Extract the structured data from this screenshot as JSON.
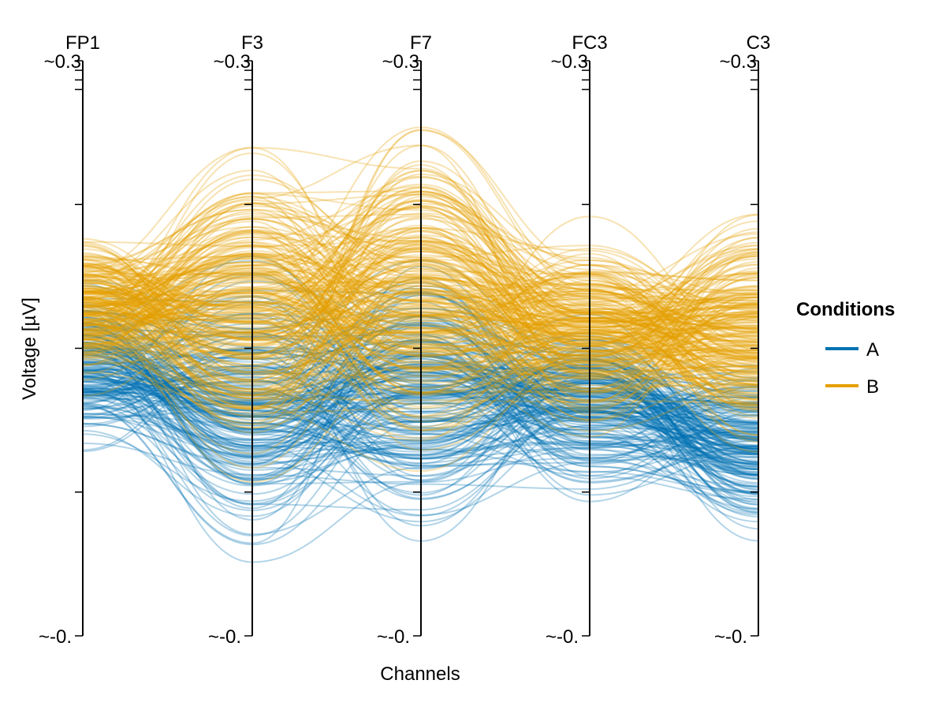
{
  "chart_data": {
    "type": "line",
    "subtype": "parallel-coordinates",
    "xlabel": "Channels",
    "ylabel": "Voltage [µV]",
    "categories": [
      "FP1",
      "F3",
      "F7",
      "FC3",
      "C3"
    ],
    "axis_tick_labels": {
      "top": [
        "~0.3",
        "~0.3",
        "~0.3",
        "~0.3",
        "~0.3"
      ],
      "bottom": [
        "~-0.",
        "~-0.",
        "~-0.",
        "~-0.",
        "~-0."
      ]
    },
    "ylim": [
      0.0,
      0.3
    ],
    "grid": false,
    "legend": {
      "title": "Conditions",
      "position": "right",
      "entries": [
        {
          "name": "A",
          "color": "#0072B2"
        },
        {
          "name": "B",
          "color": "#E69F00"
        }
      ]
    },
    "series": [
      {
        "name": "A",
        "color": "#0072B2",
        "approx_line_count": 200,
        "channel_value_ranges": {
          "FP1": [
            0.07,
            0.21
          ],
          "F3": [
            0.005,
            0.245
          ],
          "F7": [
            0.0,
            0.26
          ],
          "FC3": [
            0.025,
            0.19
          ],
          "C3": [
            0.022,
            0.175
          ]
        },
        "channel_means": {
          "FP1": 0.14,
          "F3": 0.12,
          "F7": 0.13,
          "FC3": 0.12,
          "C3": 0.1
        }
      },
      {
        "name": "B",
        "color": "#E69F00",
        "approx_line_count": 250,
        "channel_value_ranges": {
          "FP1": [
            0.07,
            0.21
          ],
          "F3": [
            0.005,
            0.285
          ],
          "F7": [
            0.0,
            0.3
          ],
          "FC3": [
            0.04,
            0.22
          ],
          "C3": [
            0.04,
            0.245
          ]
        },
        "channel_means": {
          "FP1": 0.17,
          "F3": 0.17,
          "F7": 0.18,
          "FC3": 0.16,
          "C3": 0.16
        }
      }
    ]
  }
}
